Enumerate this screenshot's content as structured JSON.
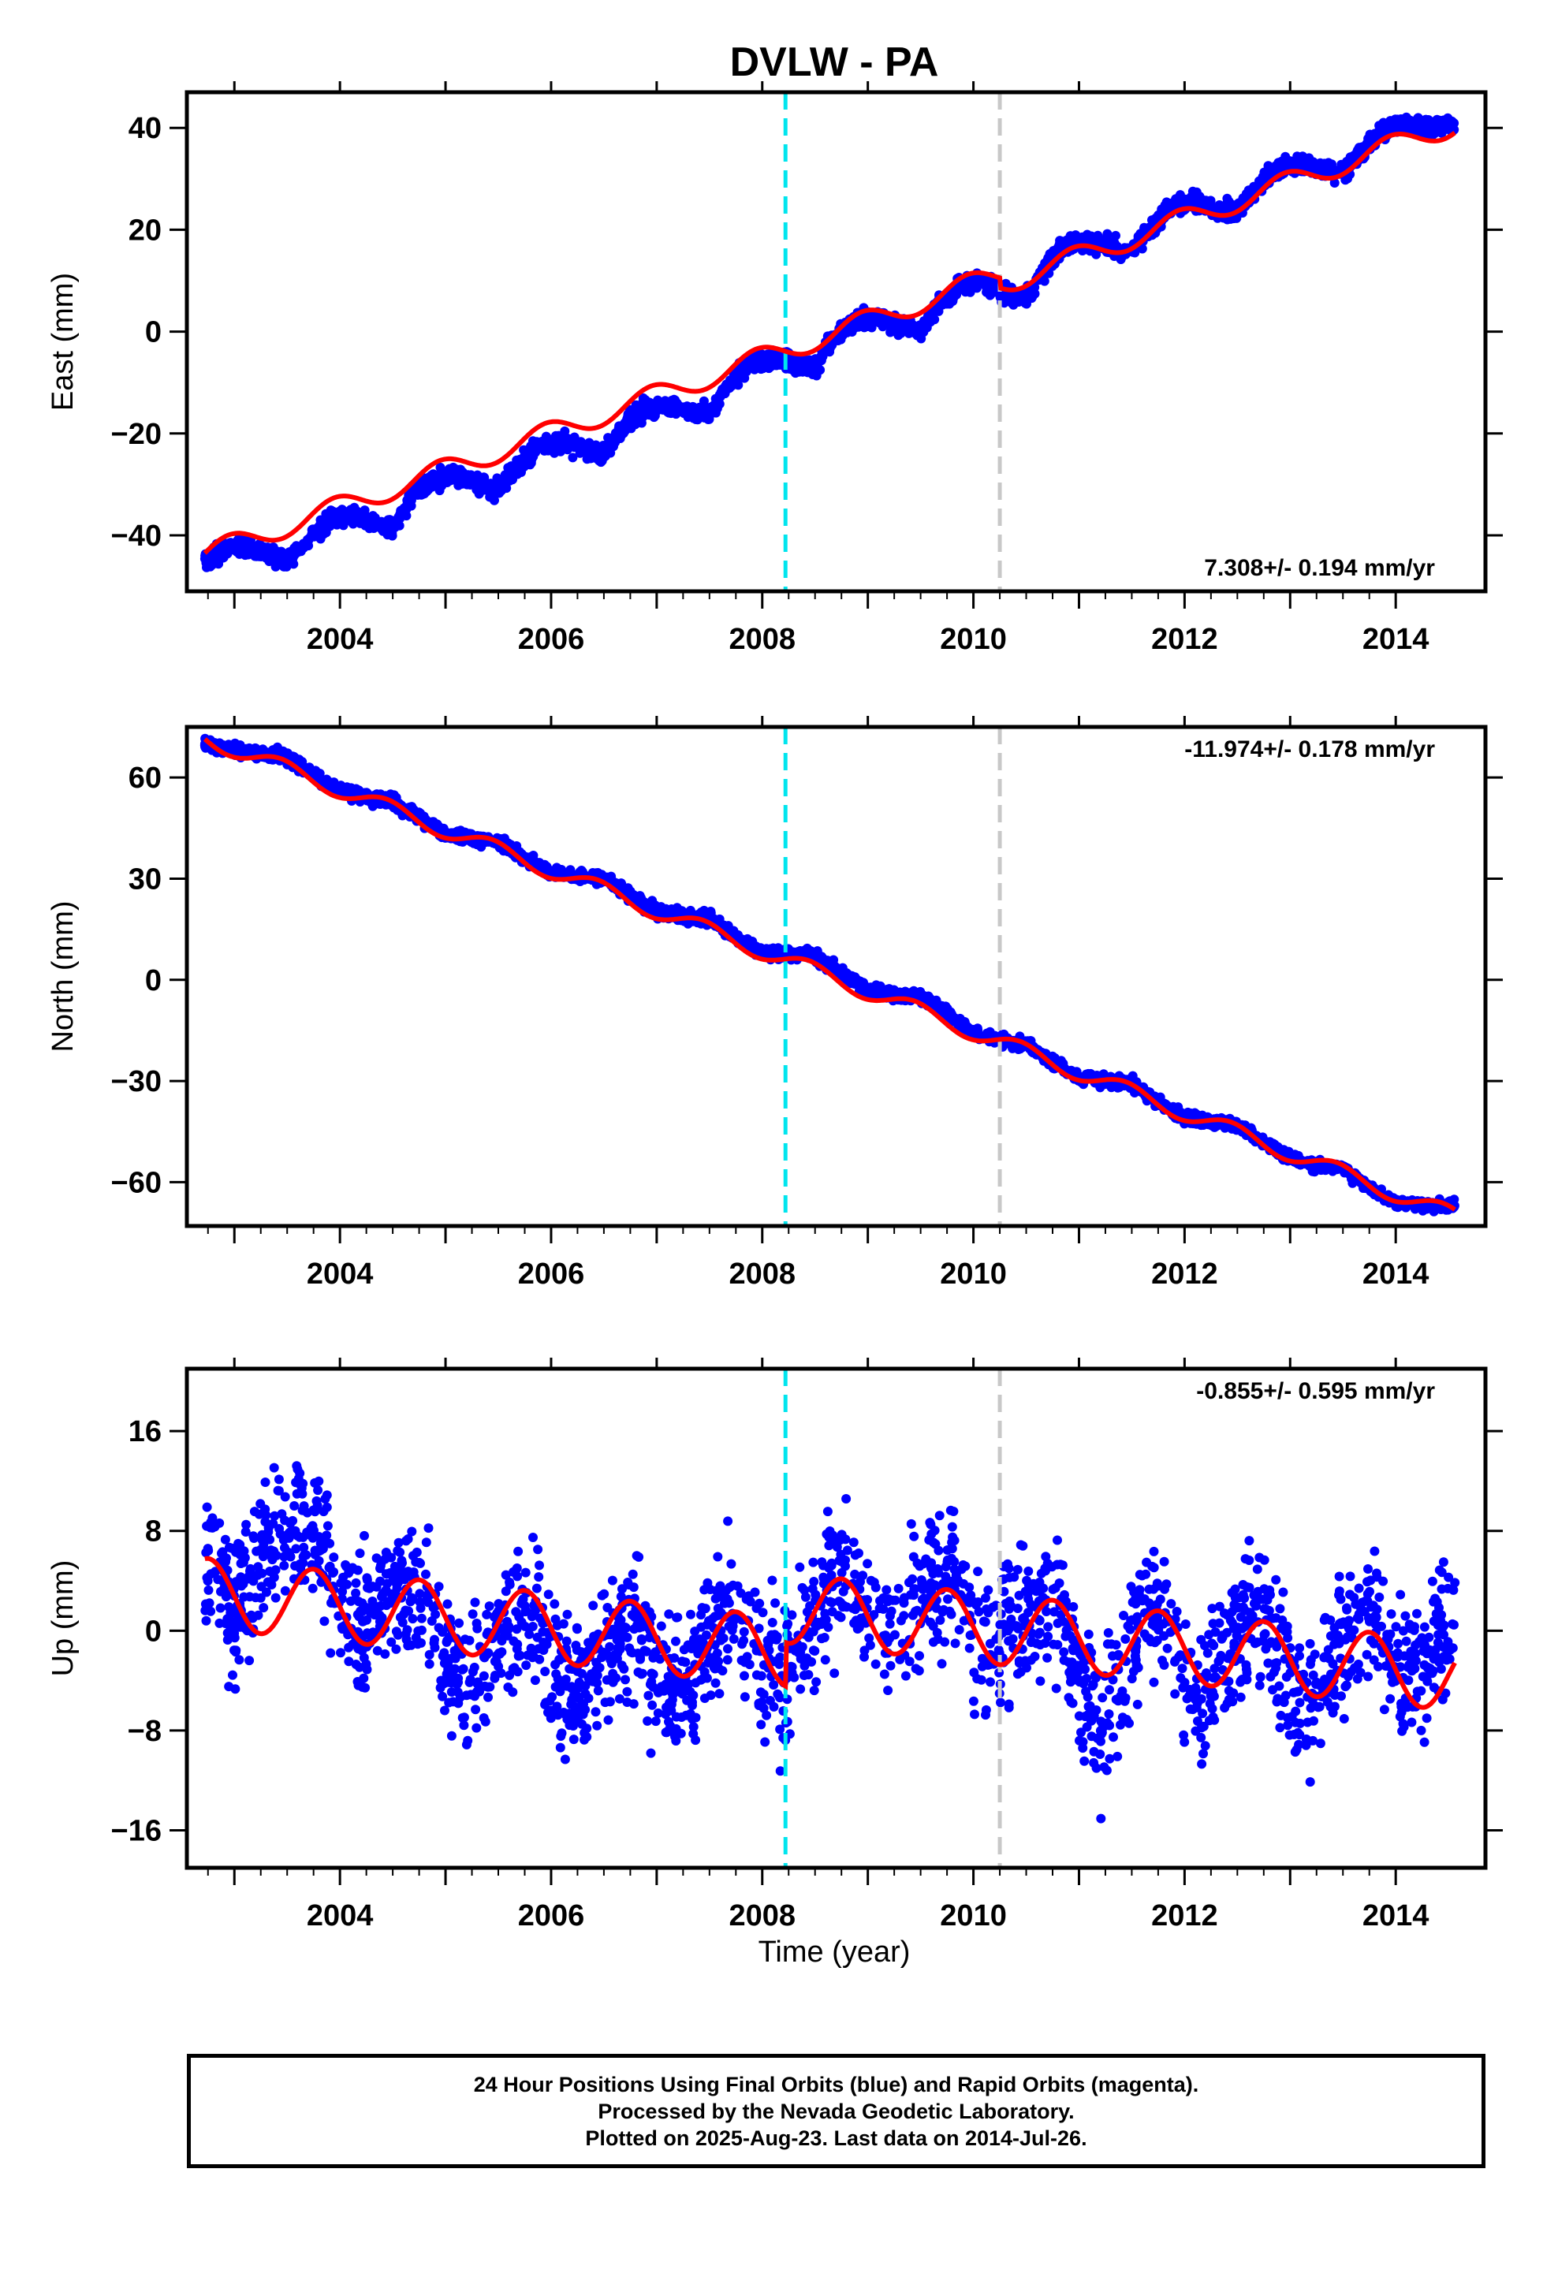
{
  "title": "DVLW - PA",
  "xlabel": "Time (year)",
  "colors": {
    "data_points": "#0000ff",
    "model_curve": "#ff0000",
    "equipment_change_line": "#00e5ee",
    "other_offset_line": "#c8c8c8"
  },
  "footer": {
    "line1": "24 Hour Positions Using Final Orbits (blue) and Rapid Orbits (magenta).",
    "line2": "Processed by the Nevada Geodetic Laboratory.",
    "line3": "Plotted on 2025-Aug-23. Last data on 2014-Jul-26."
  },
  "chart_data": [
    {
      "type": "scatter",
      "panel": "east",
      "ylabel": "East (mm)",
      "rate_label": "7.308+/- 0.194 mm/yr",
      "rate_position": "bottom-right",
      "xlim": [
        2002.55,
        2014.85
      ],
      "ylim": [
        -51,
        47
      ],
      "xticks": [
        2004,
        2006,
        2008,
        2010,
        2012,
        2014
      ],
      "yticks": [
        -40,
        -20,
        0,
        20,
        40
      ],
      "vlines": [
        {
          "x": 2008.22,
          "style": "dashed",
          "color": "#00e5ee"
        },
        {
          "x": 2010.25,
          "style": "dashed",
          "color": "#c8c8c8"
        }
      ],
      "model": {
        "rate": 7.308,
        "intercept_at_2008": -5.2,
        "annual_amplitude": 2.2,
        "annual_peak": 0.95,
        "step_at": 2010.25,
        "step": -2.0
      },
      "series": [
        {
          "kind": "points",
          "x": [
            2002.75,
            2002.9,
            2003.1,
            2003.3,
            2003.5,
            2003.7,
            2003.9,
            2004.1,
            2004.3,
            2004.5,
            2004.7,
            2004.9,
            2005.1,
            2005.3,
            2005.5,
            2005.7,
            2005.9,
            2006.1,
            2006.3,
            2006.5,
            2006.7,
            2006.9,
            2007.1,
            2007.3,
            2007.5,
            2007.7,
            2007.9,
            2008.1,
            2008.3,
            2008.5,
            2008.7,
            2008.9,
            2009.1,
            2009.3,
            2009.5,
            2009.7,
            2009.9,
            2010.1,
            2010.3,
            2010.5,
            2010.7,
            2010.9,
            2011.1,
            2011.3,
            2011.5,
            2011.7,
            2011.9,
            2012.1,
            2012.3,
            2012.5,
            2012.7,
            2012.9,
            2013.1,
            2013.3,
            2013.5,
            2013.7,
            2013.9,
            2014.1,
            2014.3,
            2014.5
          ],
          "y": [
            -44.5,
            -43,
            -42,
            -43.5,
            -45,
            -41,
            -37,
            -36,
            -37.5,
            -39,
            -32,
            -29,
            -28.5,
            -30,
            -31,
            -26,
            -22,
            -22,
            -23,
            -24,
            -18,
            -15,
            -14.5,
            -15.5,
            -16,
            -10,
            -6,
            -5.5,
            -6.5,
            -7,
            -1,
            2.5,
            2.5,
            1,
            0.5,
            6,
            9.5,
            10,
            7,
            6.5,
            13,
            17,
            17.5,
            16.5,
            16,
            21,
            25,
            25.5,
            24,
            23.5,
            29,
            32,
            33,
            32,
            31,
            36,
            40,
            41,
            39.5,
            40.5
          ]
        }
      ]
    },
    {
      "type": "scatter",
      "panel": "north",
      "ylabel": "North (mm)",
      "rate_label": "-11.974+/- 0.178 mm/yr",
      "rate_position": "top-right",
      "xlim": [
        2002.55,
        2014.85
      ],
      "ylim": [
        -73,
        75
      ],
      "xticks": [
        2004,
        2006,
        2008,
        2010,
        2012,
        2014
      ],
      "yticks": [
        -60,
        -30,
        0,
        30,
        60
      ],
      "vlines": [
        {
          "x": 2008.22,
          "style": "dashed",
          "color": "#00e5ee"
        },
        {
          "x": 2010.25,
          "style": "dashed",
          "color": "#c8c8c8"
        }
      ],
      "model": {
        "rate": -11.974,
        "intercept_at_2008": 8.5,
        "annual_amplitude": 2.5,
        "annual_peak": 0.45,
        "step_at": 2010.25,
        "step": 0
      },
      "series": [
        {
          "kind": "points",
          "x": [
            2002.75,
            2003.0,
            2003.25,
            2003.5,
            2003.75,
            2004.0,
            2004.25,
            2004.5,
            2004.75,
            2005.0,
            2005.25,
            2005.5,
            2005.75,
            2006.0,
            2006.25,
            2006.5,
            2006.75,
            2007.0,
            2007.25,
            2007.5,
            2007.75,
            2008.0,
            2008.25,
            2008.5,
            2008.75,
            2009.0,
            2009.25,
            2009.5,
            2009.75,
            2010.0,
            2010.25,
            2010.5,
            2010.75,
            2011.0,
            2011.25,
            2011.5,
            2011.75,
            2012.0,
            2012.25,
            2012.5,
            2012.75,
            2013.0,
            2013.25,
            2013.5,
            2013.75,
            2014.0,
            2014.25,
            2014.5
          ],
          "y": [
            70,
            68,
            67,
            66,
            61,
            56,
            54,
            53,
            48,
            43,
            42,
            41,
            36,
            32,
            31,
            30,
            25,
            20,
            19,
            18,
            13,
            8,
            8,
            7,
            2,
            -3,
            -4,
            -5,
            -10,
            -16,
            -18,
            -19,
            -24,
            -29,
            -30,
            -31,
            -36,
            -41,
            -42,
            -43,
            -48,
            -53,
            -55,
            -56,
            -62,
            -66,
            -67,
            -67
          ]
        }
      ]
    },
    {
      "type": "scatter",
      "panel": "up",
      "ylabel": "Up (mm)",
      "rate_label": "-0.855+/- 0.595 mm/yr",
      "rate_position": "top-right",
      "xlim": [
        2002.55,
        2014.85
      ],
      "ylim": [
        -19,
        21
      ],
      "xticks": [
        2004,
        2006,
        2008,
        2010,
        2012,
        2014
      ],
      "yticks": [
        -16,
        -8,
        0,
        8,
        16
      ],
      "vlines": [
        {
          "x": 2008.22,
          "style": "dashed",
          "color": "#00e5ee"
        },
        {
          "x": 2010.25,
          "style": "dashed",
          "color": "#c8c8c8"
        }
      ],
      "model": {
        "rate": -0.855,
        "intercept_at_2008": -1.5,
        "annual_amplitude": 2.8,
        "annual_peak": 0.75,
        "step_at": 2008.22,
        "step": 3.5
      },
      "series": [
        {
          "kind": "points",
          "x": [
            2002.8,
            2003.0,
            2003.2,
            2003.4,
            2003.6,
            2003.8,
            2004.0,
            2004.2,
            2004.4,
            2004.6,
            2004.8,
            2005.0,
            2005.2,
            2005.4,
            2005.6,
            2005.8,
            2006.0,
            2006.2,
            2006.4,
            2006.6,
            2006.8,
            2007.0,
            2007.2,
            2007.4,
            2007.6,
            2007.8,
            2008.0,
            2008.2,
            2008.4,
            2008.6,
            2008.8,
            2009.0,
            2009.2,
            2009.4,
            2009.6,
            2009.8,
            2010.0,
            2010.2,
            2010.4,
            2010.6,
            2010.8,
            2011.0,
            2011.2,
            2011.4,
            2011.6,
            2011.8,
            2012.0,
            2012.2,
            2012.4,
            2012.6,
            2012.8,
            2013.0,
            2013.2,
            2013.4,
            2013.6,
            2013.8,
            2014.0,
            2014.2,
            2014.4
          ],
          "y": [
            5,
            1,
            4,
            8,
            9,
            7,
            3,
            0,
            2,
            4,
            3,
            -2,
            -4,
            -2,
            1,
            2,
            -3,
            -5,
            -3,
            0,
            1,
            -3,
            -5,
            -2,
            1,
            2,
            -3,
            -4,
            0,
            3,
            5,
            1,
            -1,
            2,
            4,
            5,
            1,
            -2,
            1,
            2,
            2,
            -4,
            -8,
            -3,
            1,
            2,
            -4,
            -6,
            -2,
            1,
            1,
            -5,
            -6,
            -2,
            0,
            2,
            -3,
            -4,
            0
          ]
        }
      ]
    }
  ]
}
